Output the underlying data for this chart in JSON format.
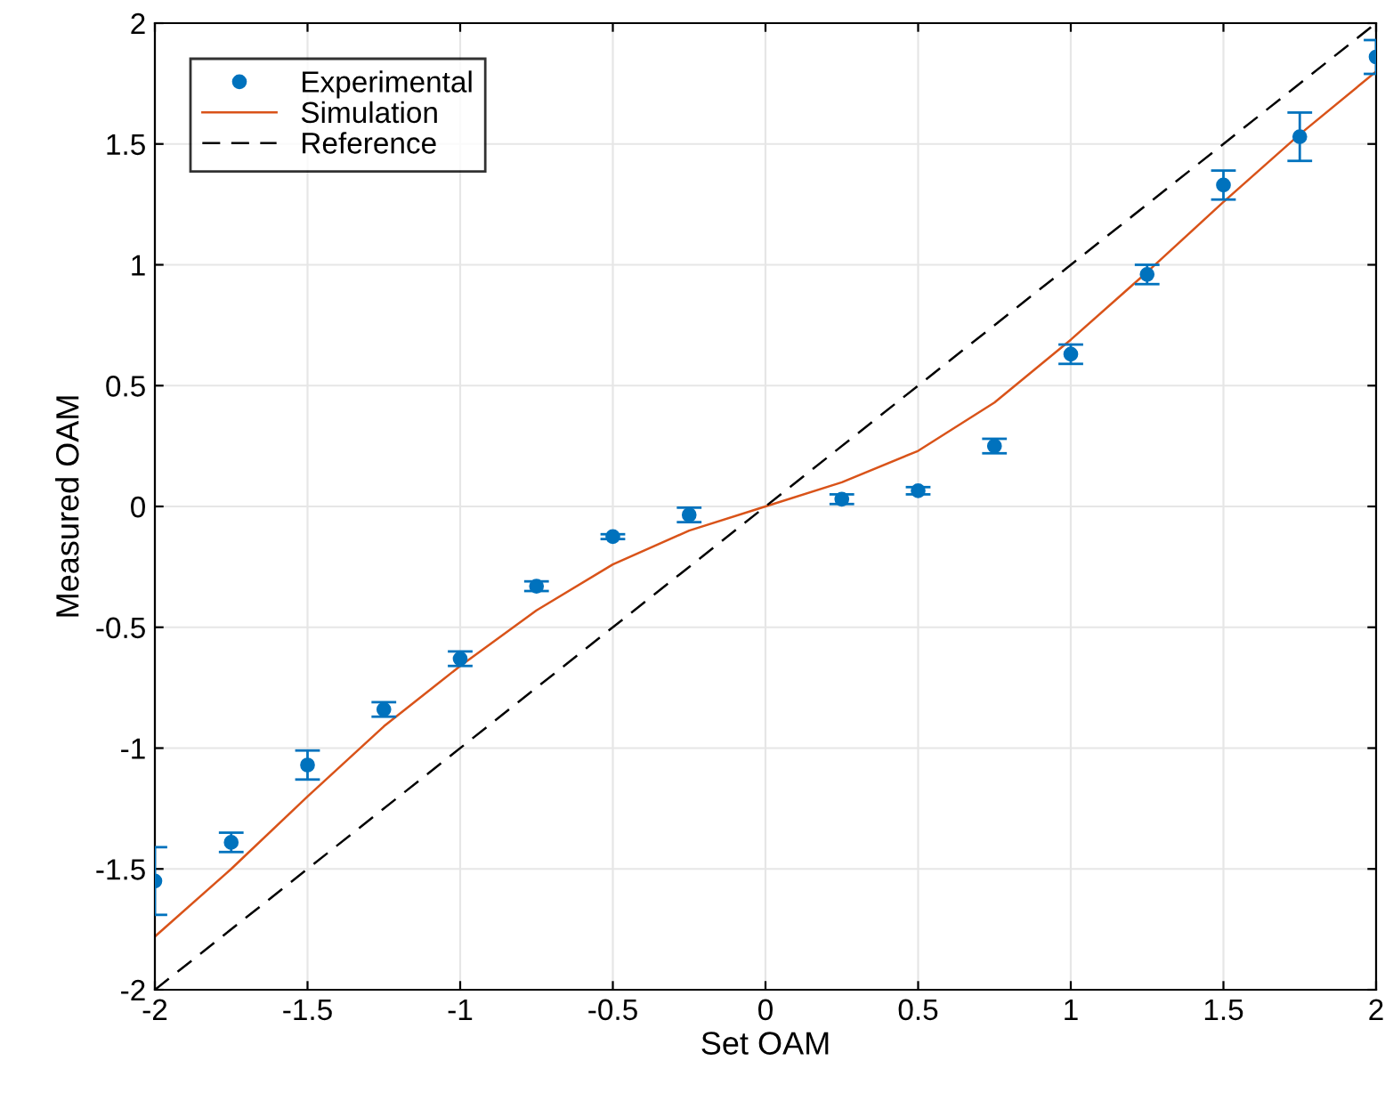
{
  "chart_data": {
    "type": "scatter",
    "xlabel": "Set OAM",
    "ylabel": "Measured OAM",
    "xlim": [
      -2,
      2
    ],
    "ylim": [
      -2,
      2
    ],
    "xticks": [
      -2,
      -1.5,
      -1,
      -0.5,
      0,
      0.5,
      1,
      1.5,
      2
    ],
    "yticks": [
      -2,
      -1.5,
      -1,
      -0.5,
      0,
      0.5,
      1,
      1.5,
      2
    ],
    "grid": true,
    "legend": "top left",
    "series": [
      {
        "name": "Experimental",
        "color": "#0072bd",
        "marker": "circle",
        "x": [
          -2,
          -1.75,
          -1.5,
          -1.25,
          -1,
          -0.75,
          -0.5,
          -0.25,
          0.25,
          0.5,
          0.75,
          1,
          1.25,
          1.5,
          1.75,
          2
        ],
        "values": [
          -1.55,
          -1.39,
          -1.07,
          -0.84,
          -0.63,
          -0.33,
          -0.125,
          -0.035,
          0.03,
          0.065,
          0.25,
          0.63,
          0.96,
          1.33,
          1.53,
          1.86
        ],
        "errors": [
          0.14,
          0.04,
          0.06,
          0.03,
          0.03,
          0.02,
          0.01,
          0.03,
          0.02,
          0.015,
          0.03,
          0.04,
          0.04,
          0.06,
          0.1,
          0.07
        ]
      },
      {
        "name": "Simulation",
        "type": "line",
        "color": "#d95319",
        "line_style": "solid",
        "x": [
          -2,
          -1.75,
          -1.5,
          -1.25,
          -1,
          -0.75,
          -0.5,
          -0.25,
          0,
          0.25,
          0.5,
          0.75,
          1,
          1.25,
          1.5,
          1.75,
          2
        ],
        "values": [
          -1.78,
          -1.5,
          -1.2,
          -0.91,
          -0.66,
          -0.43,
          -0.24,
          -0.1,
          0,
          0.1,
          0.23,
          0.43,
          0.69,
          0.97,
          1.26,
          1.54,
          1.8
        ]
      },
      {
        "name": "Reference",
        "type": "line",
        "color": "#000000",
        "line_style": "dashed",
        "x": [
          -2,
          2
        ],
        "values": [
          -2,
          2
        ]
      }
    ]
  }
}
